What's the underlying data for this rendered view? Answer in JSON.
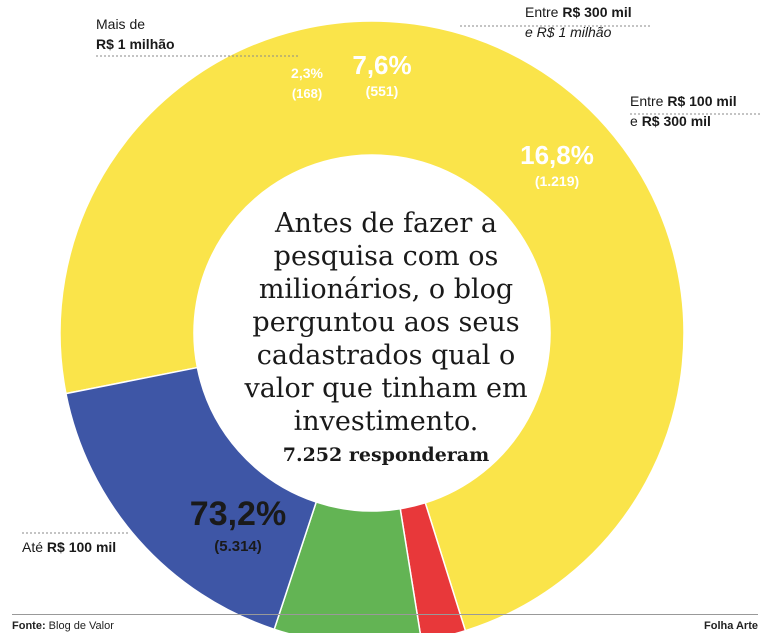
{
  "chart_data": {
    "type": "donut",
    "slices": [
      {
        "label_pre": "Até",
        "label_bold": "R$ 100 mil",
        "percent": 73.2,
        "value_label": "73,2%",
        "count": 5314,
        "count_label": "(5.314)",
        "color": "#FAE44A"
      },
      {
        "label_pre": "Mais de",
        "label_bold": "R$ 1 milhão",
        "percent": 2.3,
        "value_label": "2,3%",
        "count": 168,
        "count_label": "(168)",
        "color": "#E8383A"
      },
      {
        "label_pre": "Entre",
        "label_bold": "R$ 300 mil",
        "label_post": "e R$ 1 milhão",
        "percent": 7.6,
        "value_label": "7,6%",
        "count": 551,
        "count_label": "(551)",
        "color": "#63B454"
      },
      {
        "label_pre": "Entre",
        "label_bold": "R$ 100 mil",
        "label_post_pre": "e",
        "label_post_bold": "R$ 300 mil",
        "percent": 16.8,
        "value_label": "16,8%",
        "count": 1219,
        "count_label": "(1.219)",
        "color": "#3E56A6"
      }
    ],
    "center_text": [
      "Antes de fazer a",
      "pesquisa com os",
      "milionários, o blog",
      "perguntou aos seus",
      "cadastrados qual o",
      "valor que tinham em",
      "investimento."
    ],
    "center_total": "7.252 responderam"
  },
  "footer": {
    "source_label": "Fonte:",
    "source_value": "Blog de Valor",
    "credit": "Folha Arte"
  }
}
